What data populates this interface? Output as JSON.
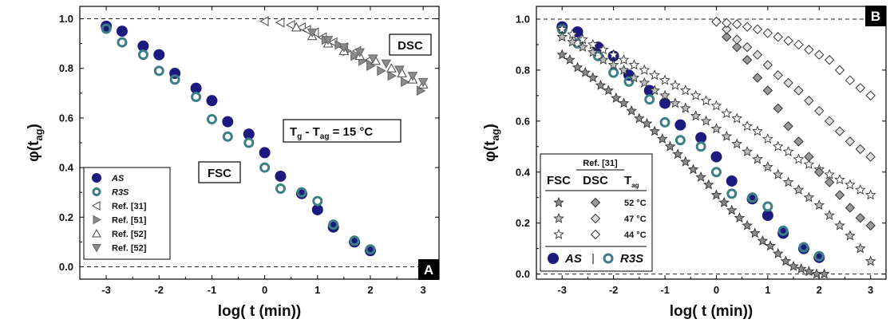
{
  "colors": {
    "navy": "#1c1a7e",
    "teal": "#3d7f86",
    "gray": "#8a8a8a",
    "lightgray": "#c9c9c9",
    "white": "#ffffff",
    "black": "#000000"
  },
  "chart_data": [
    {
      "panel": "A",
      "type": "scatter",
      "xlabel": "log( t (min))",
      "ylabel": "φ(t",
      "ylabel_sub": "ag",
      "ylabel_close": ")",
      "xlim": [
        -3.5,
        3.3
      ],
      "ylim": [
        -0.05,
        1.05
      ],
      "xticks": [
        -3,
        -2,
        -1,
        0,
        1,
        2,
        3
      ],
      "yticks": [
        0.0,
        0.2,
        0.4,
        0.6,
        0.8,
        1.0
      ],
      "ytick_labels": [
        "0.0",
        "0.2",
        "0.4",
        "0.6",
        "0.8",
        "1.0"
      ],
      "xtick_labels": [
        "-3",
        "-2",
        "-1",
        "0",
        "1",
        "2",
        "3"
      ],
      "reference_lines": [
        0.0,
        1.0
      ],
      "annotations": {
        "dsc": "DSC",
        "fsc": "FSC",
        "temp_T1": "T",
        "temp_sub1": "g",
        "temp_mid": " - T",
        "temp_sub2": "ag",
        "temp_rest": " = 15 °C"
      },
      "series": [
        {
          "name": "AS",
          "marker": "circle-filled",
          "x": [
            -3,
            -2.7,
            -2.3,
            -2,
            -1.7,
            -1.3,
            -1,
            -0.7,
            -0.3,
            0,
            0.3,
            0.7,
            1,
            1.3,
            1.7,
            2
          ],
          "y": [
            0.97,
            0.95,
            0.89,
            0.855,
            0.78,
            0.72,
            0.67,
            0.585,
            0.535,
            0.46,
            0.365,
            0.295,
            0.23,
            0.16,
            0.1,
            0.065
          ]
        },
        {
          "name": "R3S",
          "marker": "circle-open",
          "x": [
            -3,
            -2.7,
            -2.3,
            -2,
            -1.7,
            -1.3,
            -1,
            -0.7,
            -0.3,
            0,
            0.3,
            0.7,
            1,
            1.3,
            1.7,
            2
          ],
          "y": [
            0.96,
            0.905,
            0.855,
            0.79,
            0.755,
            0.685,
            0.595,
            0.525,
            0.5,
            0.4,
            0.315,
            0.3,
            0.265,
            0.17,
            0.105,
            0.07
          ]
        },
        {
          "name": "Ref. [31]",
          "marker": "triangle-left-open",
          "x": [
            0,
            0.3,
            0.5,
            0.7,
            0.8,
            0.95,
            1.1,
            1.3,
            1.5,
            1.75,
            2.0
          ],
          "y": [
            0.99,
            0.985,
            0.975,
            0.965,
            0.955,
            0.945,
            0.925,
            0.905,
            0.885,
            0.87,
            0.835
          ]
        },
        {
          "name": "Ref. [51]",
          "marker": "triangle-right-gray",
          "x": [
            1.15,
            1.4,
            1.55,
            1.7,
            1.85,
            2.0,
            2.2,
            2.4,
            2.65,
            2.95
          ],
          "y": [
            0.915,
            0.895,
            0.87,
            0.85,
            0.83,
            0.81,
            0.79,
            0.77,
            0.745,
            0.71
          ]
        },
        {
          "name": "Ref. [52]",
          "marker": "triangle-up-open",
          "x": [
            0.6,
            0.9,
            1.2,
            1.5,
            1.8,
            2.1,
            2.4,
            2.6,
            2.8,
            3.0
          ],
          "y": [
            0.965,
            0.93,
            0.9,
            0.87,
            0.85,
            0.83,
            0.8,
            0.78,
            0.755,
            0.735
          ]
        },
        {
          "name": "Ref. [52]",
          "marker": "triangle-down-gray",
          "x": [
            0.9,
            1.2,
            1.5,
            1.8,
            2.05,
            2.3,
            2.55,
            2.8,
            3.0
          ],
          "y": [
            0.945,
            0.915,
            0.885,
            0.865,
            0.84,
            0.82,
            0.795,
            0.77,
            0.745
          ]
        }
      ],
      "legend_labels": [
        "AS",
        "R3S",
        "Ref. [31]",
        "Ref. [51]",
        "Ref. [52]",
        "Ref. [52]"
      ],
      "panel_label": "A"
    },
    {
      "panel": "B",
      "type": "scatter",
      "xlabel": "log( t (min))",
      "ylabel": "φ(t",
      "ylabel_sub": "ag",
      "ylabel_close": ")",
      "xlim": [
        -3.5,
        3.3
      ],
      "ylim": [
        -0.02,
        1.05
      ],
      "xticks": [
        -3,
        -2,
        -1,
        0,
        1,
        2,
        3
      ],
      "yticks": [
        0.0,
        0.2,
        0.4,
        0.6,
        0.8,
        1.0
      ],
      "ytick_labels": [
        "0.0",
        "0.2",
        "0.4",
        "0.6",
        "0.8",
        "1.0"
      ],
      "xtick_labels": [
        "-3",
        "-2",
        "-1",
        "0",
        "1",
        "2",
        "3"
      ],
      "reference_lines": [
        0.0,
        1.0
      ],
      "series": [
        {
          "name": "AS",
          "marker": "circle-filled",
          "x": [
            -3,
            -2.7,
            -2.3,
            -2,
            -1.7,
            -1.3,
            -1,
            -0.7,
            -0.3,
            0,
            0.3,
            0.7,
            1,
            1.3,
            1.7,
            2
          ],
          "y": [
            0.97,
            0.95,
            0.89,
            0.855,
            0.78,
            0.72,
            0.67,
            0.585,
            0.535,
            0.46,
            0.365,
            0.295,
            0.23,
            0.16,
            0.1,
            0.065
          ]
        },
        {
          "name": "R3S",
          "marker": "circle-open",
          "x": [
            -3,
            -2.7,
            -2.3,
            -2,
            -1.7,
            -1.3,
            -1,
            -0.7,
            -0.3,
            0,
            0.3,
            0.7,
            1,
            1.3,
            1.7,
            2
          ],
          "y": [
            0.96,
            0.905,
            0.855,
            0.79,
            0.755,
            0.685,
            0.595,
            0.525,
            0.5,
            0.4,
            0.315,
            0.3,
            0.265,
            0.17,
            0.105,
            0.07
          ]
        },
        {
          "name": "FSC 52 °C",
          "marker": "star-gray",
          "x": [
            -3.0,
            -2.85,
            -2.7,
            -2.55,
            -2.4,
            -2.25,
            -2.1,
            -1.95,
            -1.8,
            -1.65,
            -1.5,
            -1.35,
            -1.2,
            -1.05,
            -0.9,
            -0.75,
            -0.6,
            -0.45,
            -0.3,
            -0.15,
            0.0,
            0.15,
            0.3,
            0.45,
            0.6,
            0.75,
            0.9,
            1.05,
            1.2,
            1.35,
            1.5,
            1.65,
            1.8,
            1.95,
            2.1
          ],
          "y": [
            0.86,
            0.84,
            0.81,
            0.79,
            0.77,
            0.74,
            0.72,
            0.69,
            0.67,
            0.64,
            0.61,
            0.59,
            0.56,
            0.53,
            0.5,
            0.47,
            0.44,
            0.41,
            0.38,
            0.35,
            0.31,
            0.28,
            0.25,
            0.22,
            0.19,
            0.16,
            0.13,
            0.11,
            0.08,
            0.05,
            0.03,
            0.02,
            0.01,
            0.0,
            0.0
          ]
        },
        {
          "name": "FSC 47 °C",
          "marker": "star-light",
          "x": [
            -3.0,
            -2.8,
            -2.6,
            -2.4,
            -2.2,
            -2.0,
            -1.8,
            -1.6,
            -1.4,
            -1.2,
            -1.0,
            -0.8,
            -0.6,
            -0.4,
            -0.2,
            0.0,
            0.2,
            0.4,
            0.6,
            0.8,
            1.0,
            1.2,
            1.4,
            1.6,
            1.8,
            2.0,
            2.2,
            2.4,
            2.6,
            2.8,
            3.0
          ],
          "y": [
            0.93,
            0.91,
            0.89,
            0.87,
            0.84,
            0.82,
            0.8,
            0.77,
            0.75,
            0.72,
            0.7,
            0.67,
            0.65,
            0.62,
            0.6,
            0.57,
            0.54,
            0.51,
            0.48,
            0.45,
            0.42,
            0.39,
            0.36,
            0.33,
            0.3,
            0.27,
            0.23,
            0.19,
            0.15,
            0.1,
            0.05
          ]
        },
        {
          "name": "FSC 44 °C",
          "marker": "star-open",
          "x": [
            -3.0,
            -2.8,
            -2.6,
            -2.4,
            -2.2,
            -2.0,
            -1.8,
            -1.6,
            -1.4,
            -1.2,
            -1.0,
            -0.8,
            -0.6,
            -0.4,
            -0.2,
            0.0,
            0.2,
            0.4,
            0.6,
            0.8,
            1.0,
            1.2,
            1.4,
            1.6,
            1.8,
            2.0,
            2.2,
            2.4,
            2.6,
            2.8,
            3.0
          ],
          "y": [
            0.96,
            0.94,
            0.92,
            0.9,
            0.88,
            0.86,
            0.84,
            0.82,
            0.8,
            0.78,
            0.76,
            0.74,
            0.72,
            0.7,
            0.68,
            0.66,
            0.63,
            0.61,
            0.58,
            0.56,
            0.53,
            0.5,
            0.48,
            0.45,
            0.43,
            0.41,
            0.39,
            0.37,
            0.35,
            0.33,
            0.31
          ]
        },
        {
          "name": "DSC 52 °C",
          "marker": "diamond-gray",
          "x": [
            0.0,
            0.2,
            0.4,
            0.6,
            0.8,
            1.0,
            1.2,
            1.4,
            1.6,
            1.8,
            2.0,
            2.2,
            2.4,
            2.6,
            2.8,
            3.0
          ],
          "y": [
            0.99,
            0.93,
            0.89,
            0.84,
            0.77,
            0.72,
            0.65,
            0.58,
            0.52,
            0.46,
            0.4,
            0.36,
            0.31,
            0.26,
            0.22,
            0.19
          ]
        },
        {
          "name": "DSC 47 °C",
          "marker": "diamond-light",
          "x": [
            0.0,
            0.2,
            0.4,
            0.6,
            0.8,
            1.0,
            1.2,
            1.4,
            1.6,
            1.8,
            2.0,
            2.2,
            2.4,
            2.6,
            2.8,
            3.0
          ],
          "y": [
            0.99,
            0.96,
            0.92,
            0.89,
            0.86,
            0.82,
            0.78,
            0.75,
            0.72,
            0.68,
            0.64,
            0.6,
            0.56,
            0.52,
            0.49,
            0.46
          ]
        },
        {
          "name": "DSC 44 °C",
          "marker": "diamond-open",
          "x": [
            0.0,
            0.2,
            0.4,
            0.6,
            0.8,
            1.0,
            1.2,
            1.4,
            1.6,
            1.8,
            2.0,
            2.2,
            2.4,
            2.6,
            2.8,
            3.0
          ],
          "y": [
            0.99,
            0.985,
            0.98,
            0.97,
            0.96,
            0.945,
            0.93,
            0.915,
            0.9,
            0.88,
            0.86,
            0.84,
            0.8,
            0.76,
            0.73,
            0.7
          ]
        }
      ],
      "legend": {
        "ref": "Ref. [31]",
        "col_fsc": "FSC",
        "col_dsc": "DSC",
        "col_t": "T",
        "col_t_sub": "ag",
        "rows": [
          "52 °C",
          "47 °C",
          "44 °C"
        ],
        "as": "AS",
        "r3s": "R3S"
      },
      "panel_label": "B"
    }
  ]
}
